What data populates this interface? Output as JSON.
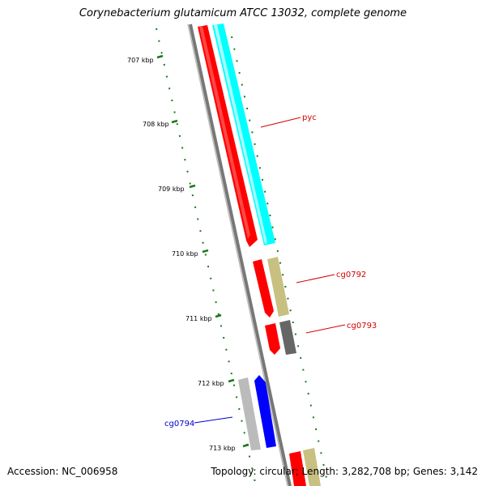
{
  "title": "Corynebacterium glutamicum ATCC 13032, complete genome",
  "footer": {
    "accession": "Accession: NC_006958",
    "summary": "Topology: circular; Length: 3,282,708 bp; Genes: 3,142"
  },
  "ruler": {
    "unit": "kbp",
    "ticks": [
      "707 kbp",
      "708 kbp",
      "709 kbp",
      "710 kbp",
      "711 kbp",
      "712 kbp",
      "713 kbp"
    ]
  },
  "genes": [
    {
      "name": "pyc",
      "color": "#d40000"
    },
    {
      "name": "cg0792",
      "color": "#d40000"
    },
    {
      "name": "cg0793",
      "color": "#d40000"
    },
    {
      "name": "cg0794",
      "color": "#0000cc"
    }
  ],
  "colors": {
    "forward_strand_feature": "#ff0000",
    "cds_forward": "#00ffff",
    "misc_feature": "#c8c080",
    "reverse_feature": "#0000ff",
    "gray_feature": "#bbbbbb",
    "dark_feature": "#666666",
    "backbone": "#777777",
    "tick_color": "#1a7a1a"
  }
}
